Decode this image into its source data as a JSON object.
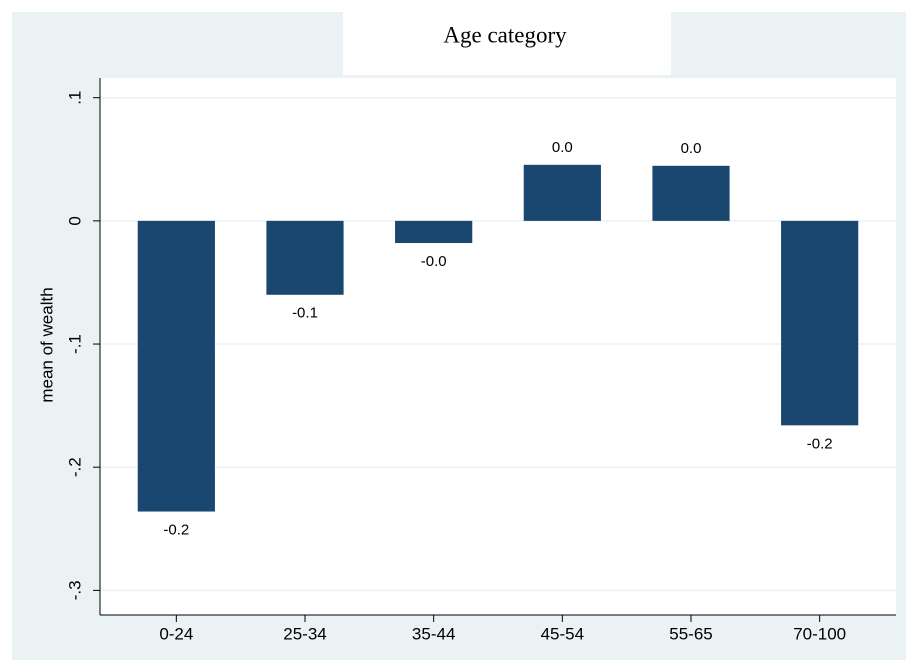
{
  "chart_data": {
    "type": "bar",
    "title": "Age category",
    "y_label": "mean of wealth",
    "categories": [
      "0-24",
      "25-34",
      "35-44",
      "45-54",
      "55-65",
      "70-100"
    ],
    "values": [
      -0.236,
      -0.06,
      -0.018,
      0.0455,
      0.0447,
      -0.166
    ],
    "value_labels": [
      "-0.2",
      "-0.1",
      "-0.0",
      "0.0",
      "0.0",
      "-0.2"
    ],
    "color": "#1a476f",
    "ylim": [
      -0.32,
      0.116
    ],
    "yticks": [
      {
        "value": -0.3,
        "label": "-.3"
      },
      {
        "value": -0.2,
        "label": "-.2"
      },
      {
        "value": -0.1,
        "label": "-.1"
      },
      0,
      {
        "value": 0.1,
        "label": ".1"
      }
    ],
    "grid": true
  }
}
